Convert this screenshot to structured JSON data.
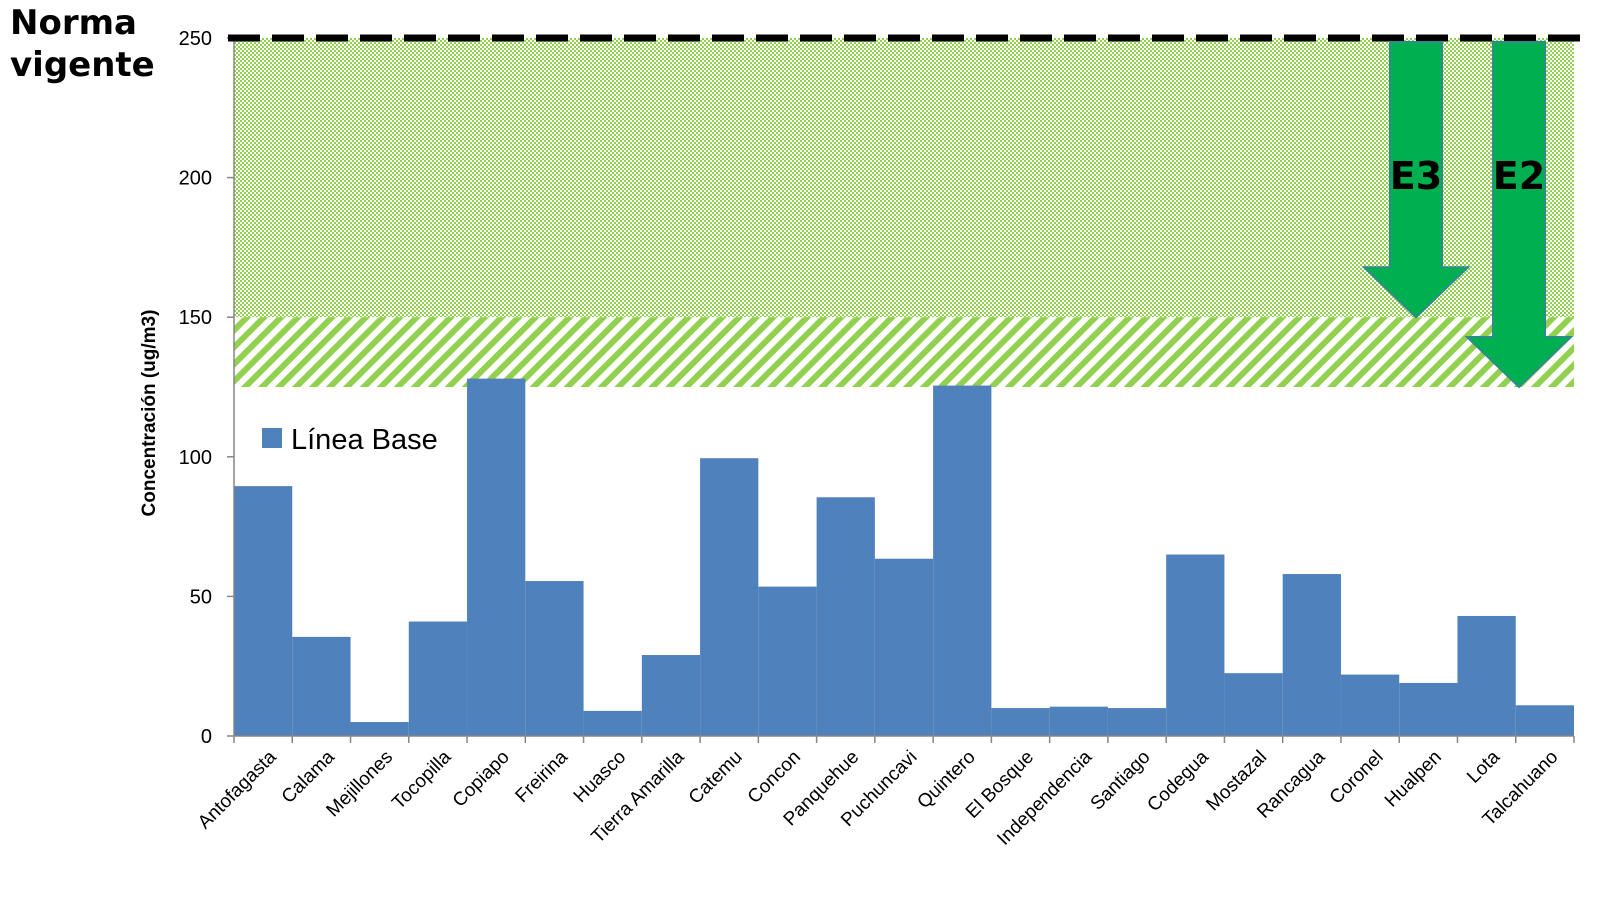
{
  "norma_label": [
    "Norma",
    "vigente"
  ],
  "colors": {
    "bar": "#4f81bd",
    "arrow": "#00b050",
    "arrow_stroke": "#2e8b8b",
    "dots_band": "#92d050",
    "hatch_band": "#92d050",
    "norma_line": "#000000"
  },
  "chart_data": {
    "type": "bar",
    "categories": [
      "Antofagasta",
      "Calama",
      "Mejillones",
      "Tocopilla",
      "Copiapo",
      "Freirina",
      "Huasco",
      "Tierra Amarilla",
      "Catemu",
      "Concon",
      "Panquehue",
      "Puchuncavi",
      "Quintero",
      "El Bosque",
      "Independencia",
      "Santiago",
      "Codegua",
      "Mostazal",
      "Rancagua",
      "Coronel",
      "Hualpen",
      "Lota",
      "Talcahuano"
    ],
    "series": [
      {
        "name": "Línea Base",
        "values": [
          89.5,
          35.5,
          5,
          41,
          128,
          55.5,
          9,
          29,
          99.5,
          53.5,
          85.5,
          63.5,
          125.5,
          10,
          10.5,
          10,
          65,
          22.5,
          58,
          22,
          19,
          43,
          11
        ]
      }
    ],
    "ylabel": "Concentración (ug/m3)",
    "xlabel": "",
    "ylim": [
      0,
      250
    ],
    "yticks": [
      0,
      50,
      100,
      150,
      200,
      250
    ],
    "legend": {
      "position": "top-left",
      "label": "Línea Base"
    },
    "reference_line": {
      "value": 250,
      "label": "Norma vigente",
      "style": "dashed"
    },
    "bands": [
      {
        "from": 150,
        "to": 250,
        "pattern": "dots"
      },
      {
        "from": 125,
        "to": 150,
        "pattern": "diagonal-hatch"
      }
    ],
    "arrows": [
      {
        "label": "E3",
        "from": 250,
        "to": 150
      },
      {
        "label": "E2",
        "from": 250,
        "to": 125
      }
    ]
  }
}
